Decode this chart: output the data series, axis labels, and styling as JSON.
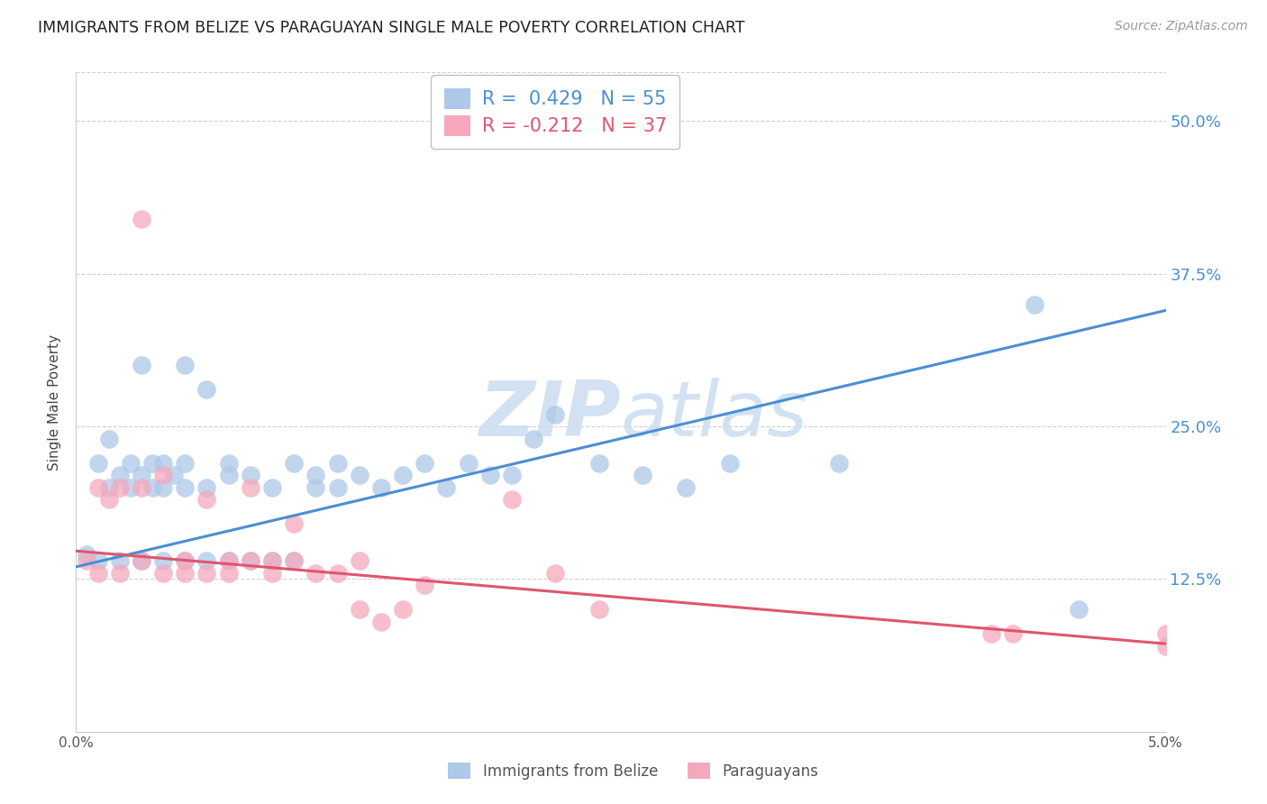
{
  "title": "IMMIGRANTS FROM BELIZE VS PARAGUAYAN SINGLE MALE POVERTY CORRELATION CHART",
  "source": "Source: ZipAtlas.com",
  "ylabel": "Single Male Poverty",
  "ytick_labels": [
    "12.5%",
    "25.0%",
    "37.5%",
    "50.0%"
  ],
  "ytick_values": [
    0.125,
    0.25,
    0.375,
    0.5
  ],
  "xtick_values": [
    0.0,
    0.01,
    0.02,
    0.03,
    0.04,
    0.05
  ],
  "xlim": [
    0.0,
    0.05
  ],
  "ylim": [
    0.0,
    0.54
  ],
  "legend_blue": "R =  0.429   N = 55",
  "legend_pink": "R = -0.212   N = 37",
  "legend_label_blue": "Immigrants from Belize",
  "legend_label_pink": "Paraguayans",
  "belize_color": "#adc8e8",
  "paraguayan_color": "#f5a8bc",
  "trendline_blue": "#4a8fd4",
  "trendline_pink": "#e0556e",
  "watermark_color": "#ccddf0",
  "blue_trendline_x": [
    0.0,
    0.05
  ],
  "blue_trendline_y": [
    0.135,
    0.345
  ],
  "pink_trendline_x": [
    0.0,
    0.05
  ],
  "pink_trendline_y": [
    0.148,
    0.072
  ],
  "blue_scatter_x": [
    0.0005,
    0.001,
    0.001,
    0.0015,
    0.0015,
    0.002,
    0.002,
    0.0025,
    0.0025,
    0.003,
    0.003,
    0.003,
    0.0035,
    0.0035,
    0.004,
    0.004,
    0.004,
    0.0045,
    0.005,
    0.005,
    0.005,
    0.005,
    0.006,
    0.006,
    0.006,
    0.007,
    0.007,
    0.007,
    0.008,
    0.008,
    0.009,
    0.009,
    0.01,
    0.01,
    0.011,
    0.011,
    0.012,
    0.012,
    0.013,
    0.014,
    0.015,
    0.016,
    0.017,
    0.018,
    0.019,
    0.02,
    0.021,
    0.022,
    0.024,
    0.026,
    0.028,
    0.03,
    0.035,
    0.044,
    0.046
  ],
  "blue_scatter_y": [
    0.145,
    0.14,
    0.22,
    0.2,
    0.24,
    0.14,
    0.21,
    0.2,
    0.22,
    0.14,
    0.21,
    0.3,
    0.2,
    0.22,
    0.14,
    0.2,
    0.22,
    0.21,
    0.14,
    0.2,
    0.22,
    0.3,
    0.14,
    0.2,
    0.28,
    0.14,
    0.21,
    0.22,
    0.14,
    0.21,
    0.14,
    0.2,
    0.14,
    0.22,
    0.2,
    0.21,
    0.2,
    0.22,
    0.21,
    0.2,
    0.21,
    0.22,
    0.2,
    0.22,
    0.21,
    0.21,
    0.24,
    0.26,
    0.22,
    0.21,
    0.2,
    0.22,
    0.22,
    0.35,
    0.1
  ],
  "pink_scatter_x": [
    0.0005,
    0.001,
    0.001,
    0.0015,
    0.002,
    0.002,
    0.003,
    0.003,
    0.003,
    0.004,
    0.004,
    0.005,
    0.005,
    0.006,
    0.006,
    0.007,
    0.007,
    0.008,
    0.008,
    0.009,
    0.009,
    0.01,
    0.01,
    0.011,
    0.012,
    0.013,
    0.013,
    0.014,
    0.015,
    0.016,
    0.02,
    0.022,
    0.024,
    0.042,
    0.043,
    0.05,
    0.05
  ],
  "pink_scatter_y": [
    0.14,
    0.13,
    0.2,
    0.19,
    0.13,
    0.2,
    0.14,
    0.2,
    0.42,
    0.13,
    0.21,
    0.13,
    0.14,
    0.13,
    0.19,
    0.13,
    0.14,
    0.14,
    0.2,
    0.13,
    0.14,
    0.14,
    0.17,
    0.13,
    0.13,
    0.14,
    0.1,
    0.09,
    0.1,
    0.12,
    0.19,
    0.13,
    0.1,
    0.08,
    0.08,
    0.07,
    0.08
  ]
}
